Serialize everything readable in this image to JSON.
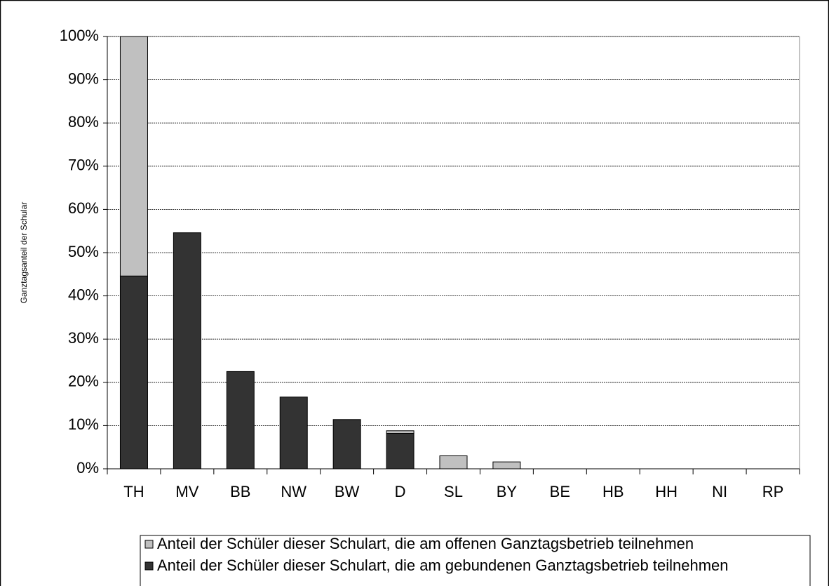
{
  "chart_data": {
    "type": "stacked_bar",
    "y_label": "Ganztagsanteil der Schular",
    "categories": [
      "TH",
      "MV",
      "BB",
      "NW",
      "BW",
      "D",
      "SL",
      "BY",
      "BE",
      "HB",
      "HH",
      "NI",
      "RP"
    ],
    "series": [
      {
        "name": "Anteil der Schüler dieser Schulart, die am offenen Ganztagsbetrieb teilnehmen",
        "color": "#c0c0c0",
        "values": [
          55.4,
          0,
          0,
          0,
          0,
          0.6,
          3.0,
          1.6,
          0,
          0,
          0,
          0,
          0
        ]
      },
      {
        "name": "Anteil der Schüler dieser Schulart, die am gebundenen Ganztagsbetrieb teilnehmen",
        "color": "#333333",
        "values": [
          44.6,
          54.6,
          22.5,
          16.6,
          11.4,
          8.2,
          0,
          0,
          0,
          0,
          0,
          0,
          0
        ]
      }
    ],
    "ylim": [
      0,
      100
    ],
    "yticks": [
      {
        "value": 0,
        "label": "0%"
      },
      {
        "value": 10,
        "label": "10%"
      },
      {
        "value": 20,
        "label": "20%"
      },
      {
        "value": 30,
        "label": "30%"
      },
      {
        "value": 40,
        "label": "40%"
      },
      {
        "value": 50,
        "label": "50%"
      },
      {
        "value": 60,
        "label": "60%"
      },
      {
        "value": 70,
        "label": "70%"
      },
      {
        "value": 80,
        "label": "80%"
      },
      {
        "value": 90,
        "label": "90%"
      },
      {
        "value": 100,
        "label": "100%"
      }
    ],
    "grid": true
  }
}
